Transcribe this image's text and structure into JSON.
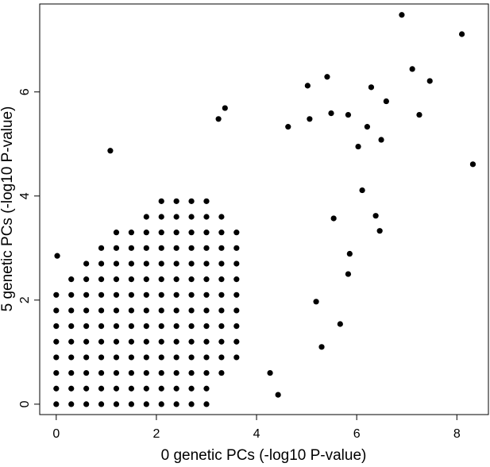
{
  "chart_data": {
    "type": "scatter",
    "x_label": "0 genetic PCs (-log10 P-value)",
    "y_label": "5 genetic PCs (-log10 P-value)",
    "xlim": [
      -0.33,
      8.63
    ],
    "ylim": [
      -0.2,
      7.69
    ],
    "xticks": [
      0,
      2,
      4,
      6,
      8
    ],
    "yticks": [
      0,
      2,
      4,
      6
    ],
    "color": "#000000",
    "x": [
      0,
      0,
      0,
      0,
      0,
      0,
      0,
      0,
      0.3,
      0.3,
      0.3,
      0.3,
      0.3,
      0.3,
      0.3,
      0.3,
      0.3,
      0.6,
      0.6,
      0.6,
      0.6,
      0.6,
      0.6,
      0.6,
      0.6,
      0.6,
      0.6,
      0.9,
      0.9,
      0.9,
      0.9,
      0.9,
      0.9,
      0.9,
      0.9,
      0.9,
      0.9,
      0.9,
      1.2,
      1.2,
      1.2,
      1.2,
      1.2,
      1.2,
      1.2,
      1.2,
      1.2,
      1.2,
      1.2,
      1.2,
      1.5,
      1.5,
      1.5,
      1.5,
      1.5,
      1.5,
      1.5,
      1.5,
      1.5,
      1.5,
      1.5,
      1.5,
      1.8,
      1.8,
      1.8,
      1.8,
      1.8,
      1.8,
      1.8,
      1.8,
      1.8,
      1.8,
      1.8,
      1.8,
      1.8,
      2.1,
      2.1,
      2.1,
      2.1,
      2.1,
      2.1,
      2.1,
      2.1,
      2.1,
      2.1,
      2.1,
      2.1,
      2.1,
      2.1,
      2.4,
      2.4,
      2.4,
      2.4,
      2.4,
      2.4,
      2.4,
      2.4,
      2.4,
      2.4,
      2.4,
      2.4,
      2.4,
      2.4,
      2.7,
      2.7,
      2.7,
      2.7,
      2.7,
      2.7,
      2.7,
      2.7,
      2.7,
      2.7,
      2.7,
      2.7,
      2.7,
      2.7,
      3.0,
      3.0,
      3.0,
      3.0,
      3.0,
      3.0,
      3.0,
      3.0,
      3.0,
      3.0,
      3.0,
      3.0,
      3.0,
      3.0,
      3.3,
      3.3,
      3.3,
      3.3,
      3.3,
      3.3,
      3.3,
      3.3,
      3.3,
      3.3,
      3.3,
      3.6,
      3.6,
      3.6,
      3.6,
      3.6,
      3.6,
      3.6,
      3.6,
      3.6,
      6.9,
      8.1,
      7.11,
      7.46,
      7.25,
      8.32,
      1.08,
      5.41,
      5.02,
      6.29,
      6.59,
      5.49,
      5.3,
      5.67,
      4.43,
      3.37,
      3.24,
      5.83,
      6.21,
      6.49,
      6.03,
      4.63,
      5.06,
      0.02,
      6.38,
      6.46,
      6.11,
      5.86,
      5.83,
      5.19,
      5.54,
      4.27
    ],
    "y": [
      0,
      0.3,
      0.6,
      0.9,
      1.2,
      1.5,
      1.8,
      2.1,
      0,
      0.3,
      0.6,
      0.9,
      1.2,
      1.5,
      1.8,
      2.1,
      2.4,
      0,
      0.3,
      0.6,
      0.9,
      1.2,
      1.5,
      1.8,
      2.1,
      2.4,
      2.7,
      0,
      0.3,
      0.6,
      0.9,
      1.2,
      1.5,
      1.8,
      2.1,
      2.4,
      2.7,
      3.0,
      0,
      0.3,
      0.6,
      0.9,
      1.2,
      1.5,
      1.8,
      2.1,
      2.4,
      2.7,
      3.0,
      3.3,
      0,
      0.3,
      0.6,
      0.9,
      1.2,
      1.5,
      1.8,
      2.1,
      2.4,
      2.7,
      3.0,
      3.3,
      0,
      0.3,
      0.6,
      0.9,
      1.2,
      1.5,
      1.8,
      2.1,
      2.4,
      2.7,
      3.0,
      3.3,
      3.6,
      0,
      0.3,
      0.6,
      0.9,
      1.2,
      1.5,
      1.8,
      2.1,
      2.4,
      2.7,
      3.0,
      3.3,
      3.6,
      3.9,
      0,
      0.3,
      0.6,
      0.9,
      1.2,
      1.5,
      1.8,
      2.1,
      2.4,
      2.7,
      3.0,
      3.3,
      3.6,
      3.9,
      0,
      0.3,
      0.6,
      0.9,
      1.2,
      1.5,
      1.8,
      2.1,
      2.4,
      2.7,
      3.0,
      3.3,
      3.6,
      3.9,
      0,
      0.3,
      0.6,
      0.9,
      1.2,
      1.5,
      1.8,
      2.1,
      2.4,
      2.7,
      3.0,
      3.3,
      3.6,
      3.9,
      0.6,
      0.9,
      1.2,
      1.5,
      1.8,
      2.1,
      2.4,
      2.7,
      3.0,
      3.3,
      3.6,
      0.9,
      1.2,
      1.5,
      1.8,
      2.1,
      2.4,
      2.7,
      3.0,
      3.3,
      7.48,
      7.11,
      6.44,
      6.21,
      5.56,
      4.61,
      4.87,
      6.29,
      6.12,
      6.09,
      5.82,
      5.59,
      1.1,
      1.54,
      0.18,
      5.69,
      5.48,
      5.56,
      5.33,
      5.08,
      4.95,
      5.33,
      5.48,
      2.85,
      3.62,
      3.33,
      4.11,
      2.89,
      2.5,
      1.97,
      3.57,
      0.6
    ]
  }
}
